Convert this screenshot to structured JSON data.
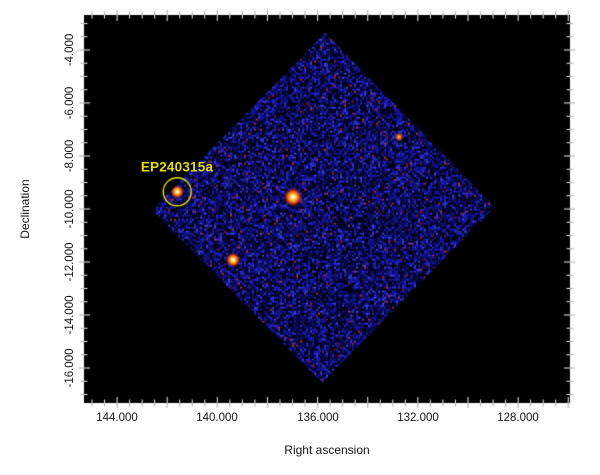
{
  "chart_data": {
    "type": "heatmap",
    "title": "",
    "xlabel": "Right ascension",
    "ylabel": "Declination",
    "x_tick_labels": [
      "144.000",
      "140.000",
      "136.000",
      "132.000",
      "128.000"
    ],
    "x_tick_values": [
      144,
      140,
      136,
      132,
      128
    ],
    "x_minor_step": 0.5,
    "x_major_step": 2,
    "x_range": [
      145.32,
      125.93
    ],
    "y_tick_labels": [
      "-4.000",
      "-6.000",
      "-8.000",
      "-10.000",
      "-12.000",
      "-14.000",
      "-16.000"
    ],
    "y_tick_values": [
      -4,
      -6,
      -8,
      -10,
      -12,
      -14,
      -16
    ],
    "y_minor_step": 0.5,
    "y_major_step": 2,
    "y_range": [
      -2.68,
      -17.32
    ],
    "grid": false,
    "legend": false,
    "page_bg": "#ffffff",
    "plot_bg": "#000000",
    "tick_color_inside": "#f2f2f2",
    "tick_color_outside": "#a8a8a8",
    "detector_field": {
      "shape": "rotated_square",
      "corners_radec": [
        [
          135.7,
          -3.35
        ],
        [
          128.93,
          -9.92
        ],
        [
          135.82,
          -16.57
        ],
        [
          142.6,
          -10.04
        ]
      ],
      "noise_palette": [
        "#03031a",
        "#0a0a4e",
        "#13138e",
        "#1c1cc4",
        "#2e2ee4",
        "#4646f2",
        "#202060"
      ],
      "speckle_palette": [
        "#801830",
        "#aa2840",
        "#c03a30"
      ]
    },
    "sources": [
      {
        "name": "EP240315a",
        "ra": 141.6,
        "dec": -9.35,
        "brightness": 0.62,
        "circled": true
      },
      {
        "name": "",
        "ra": 136.98,
        "dec": -9.55,
        "brightness": 1.0,
        "circled": false
      },
      {
        "name": "",
        "ra": 139.37,
        "dec": -11.92,
        "brightness": 0.68,
        "circled": false
      },
      {
        "name": "",
        "ra": 132.75,
        "dec": -7.28,
        "brightness": 0.28,
        "circled": false
      }
    ],
    "annotation": {
      "label": "EP240315a",
      "color": "#e6df00",
      "circle_radius_px": 14
    }
  }
}
